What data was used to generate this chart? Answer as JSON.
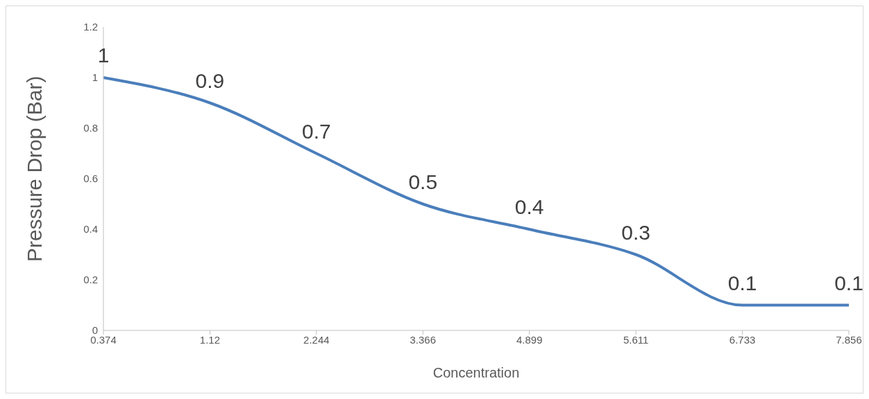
{
  "chart_data": {
    "type": "line",
    "xlabel": "Concentration",
    "ylabel": "Pressure Drop (Bar)",
    "categories": [
      "0.374",
      "1.12",
      "2.244",
      "3.366",
      "4.899",
      "5.611",
      "6.733",
      "7.856"
    ],
    "values": [
      1,
      0.9,
      0.7,
      0.5,
      0.4,
      0.3,
      0.1,
      0.1
    ],
    "color": "#4a7ebb",
    "ylim": [
      0,
      1.2
    ],
    "yticks": [
      0,
      0.2,
      0.4,
      0.6,
      0.8,
      1,
      1.2
    ],
    "data_labels": true,
    "marker": "none"
  }
}
